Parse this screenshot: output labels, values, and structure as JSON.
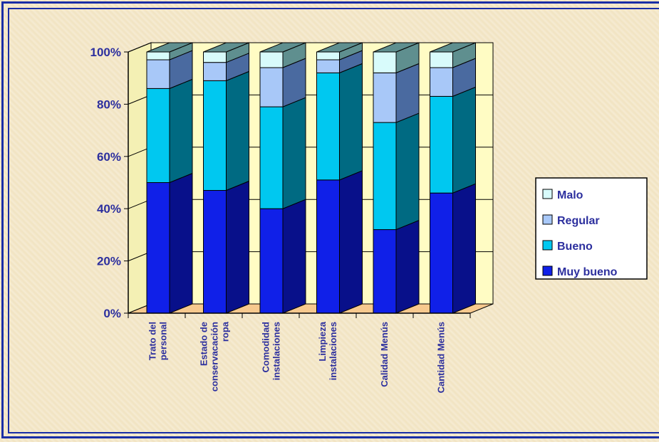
{
  "chart_data": {
    "type": "bar",
    "stacked": true,
    "three_d": true,
    "categories": [
      [
        "Trato del",
        "personal"
      ],
      [
        "Estado de",
        "conservacación",
        "ropa"
      ],
      [
        "Comodidad",
        "instalaciones"
      ],
      [
        "Limpieza",
        "instalaciones"
      ],
      [
        "Calidad Menús"
      ],
      [
        "Cantidad Menús"
      ]
    ],
    "series": [
      {
        "name": "Muy bueno",
        "values": [
          50,
          47,
          40,
          51,
          32,
          46
        ],
        "color": "#1020e8",
        "side": "#08108a"
      },
      {
        "name": "Bueno",
        "values": [
          36,
          42,
          39,
          41,
          41,
          37
        ],
        "color": "#00c8f0",
        "side": "#006a82"
      },
      {
        "name": "Regular",
        "values": [
          11,
          7,
          15,
          5,
          19,
          11
        ],
        "color": "#a8c8f8",
        "side": "#4a6aa0"
      },
      {
        "name": "Malo",
        "values": [
          3,
          4,
          6,
          3,
          8,
          6
        ],
        "color": "#d8fbfb",
        "side": "#5f8f8f"
      }
    ],
    "y_ticks": [
      "0%",
      "20%",
      "40%",
      "60%",
      "80%",
      "100%"
    ],
    "ylim": [
      0,
      100
    ],
    "legend_position": "right",
    "wall_color": "#fffcc4",
    "floor_color": "#f7c98e"
  }
}
